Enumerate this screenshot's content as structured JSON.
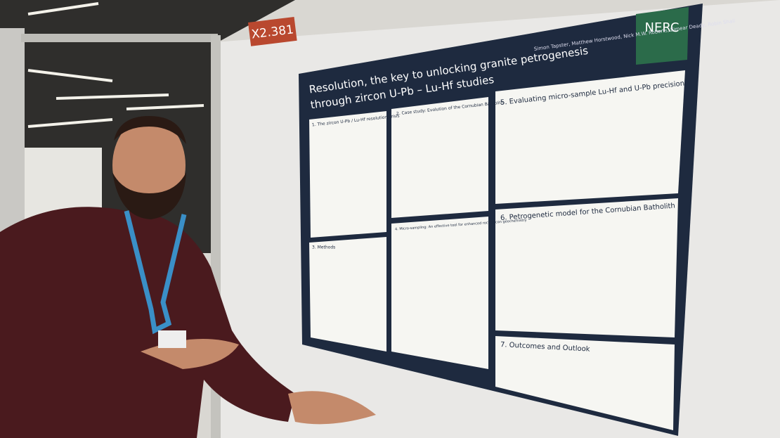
{
  "board_label": "X2.381",
  "poster": {
    "title_line_1": "Resolution, the key to unlocking granite petrogenesis",
    "title_line_2": "through zircon U-Pb – Lu-Hf studies",
    "authors": "Simon Tapster, Matthew Horstwood, Nick M.W. Roberts, Eimear Deady, Robin Shail",
    "logo": "NERC",
    "sections": [
      "1. The zircon U-Pb / Lu-Hf resolution crisis",
      "2. Case study: Evolution of the Cornubian Batholith",
      "3. Methods",
      "4. Micro-sampling: An effective tool for enhanced rock zircon geochemistry",
      "5. Evaluating micro-sample Lu-Hf and U-Pb precision",
      "6. Petrogenetic model for the Cornubian Batholith",
      "7. Outcomes and Outlook"
    ]
  }
}
